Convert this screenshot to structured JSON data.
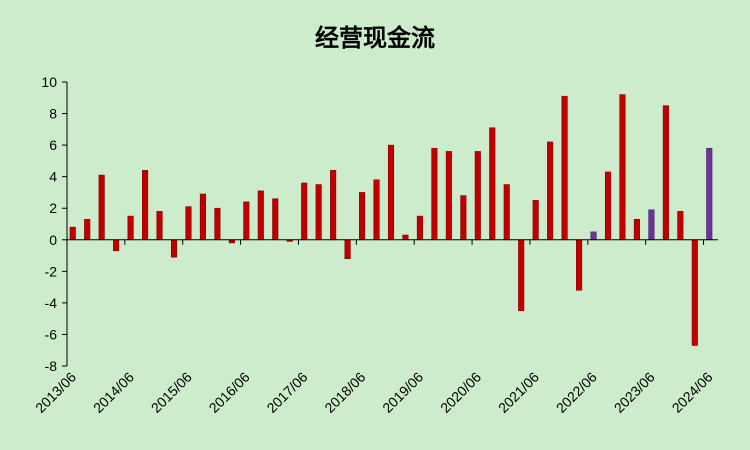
{
  "chart_data": {
    "type": "bar",
    "title": "经营现金流",
    "xlabel": "",
    "ylabel": "",
    "ylim": [
      -8,
      10
    ],
    "yticks": [
      10,
      8,
      6,
      4,
      2,
      0,
      -2,
      -4,
      -6,
      -8
    ],
    "grid": false,
    "x_tick_labels": [
      "2013/06",
      "2014/06",
      "2015/06",
      "2016/06",
      "2017/06",
      "2018/06",
      "2019/06",
      "2020/06",
      "2021/06",
      "2022/06",
      "2023/06",
      "2024/06"
    ],
    "colors": {
      "default": "#c00000",
      "highlight": "#7030a0",
      "background": "#cdeccb"
    },
    "bars": [
      {
        "value": 0.8,
        "highlight": false
      },
      {
        "value": 1.3,
        "highlight": false
      },
      {
        "value": 4.1,
        "highlight": false
      },
      {
        "value": -0.7,
        "highlight": false
      },
      {
        "value": 1.5,
        "highlight": false
      },
      {
        "value": 4.4,
        "highlight": false
      },
      {
        "value": 1.8,
        "highlight": false
      },
      {
        "value": -1.1,
        "highlight": false
      },
      {
        "value": 2.1,
        "highlight": false
      },
      {
        "value": 2.9,
        "highlight": false
      },
      {
        "value": 2.0,
        "highlight": false
      },
      {
        "value": -0.2,
        "highlight": false
      },
      {
        "value": 2.4,
        "highlight": false
      },
      {
        "value": 3.1,
        "highlight": false
      },
      {
        "value": 2.6,
        "highlight": false
      },
      {
        "value": -0.1,
        "highlight": false
      },
      {
        "value": 3.6,
        "highlight": false
      },
      {
        "value": 3.5,
        "highlight": false
      },
      {
        "value": 4.4,
        "highlight": false
      },
      {
        "value": -1.2,
        "highlight": false
      },
      {
        "value": 3.0,
        "highlight": false
      },
      {
        "value": 3.8,
        "highlight": false
      },
      {
        "value": 6.0,
        "highlight": false
      },
      {
        "value": 0.3,
        "highlight": false
      },
      {
        "value": 1.5,
        "highlight": false
      },
      {
        "value": 5.8,
        "highlight": false
      },
      {
        "value": 5.6,
        "highlight": false
      },
      {
        "value": 2.8,
        "highlight": false
      },
      {
        "value": 5.6,
        "highlight": false
      },
      {
        "value": 7.1,
        "highlight": false
      },
      {
        "value": 3.5,
        "highlight": false
      },
      {
        "value": -4.5,
        "highlight": false
      },
      {
        "value": 2.5,
        "highlight": false
      },
      {
        "value": 6.2,
        "highlight": false
      },
      {
        "value": 9.1,
        "highlight": false
      },
      {
        "value": -3.2,
        "highlight": false
      },
      {
        "value": 0.5,
        "highlight": true
      },
      {
        "value": 4.3,
        "highlight": false
      },
      {
        "value": 9.2,
        "highlight": false
      },
      {
        "value": 1.3,
        "highlight": false
      },
      {
        "value": 1.9,
        "highlight": true
      },
      {
        "value": 8.5,
        "highlight": false
      },
      {
        "value": 1.8,
        "highlight": false
      },
      {
        "value": -6.7,
        "highlight": false
      },
      {
        "value": 5.8,
        "highlight": true
      }
    ]
  }
}
